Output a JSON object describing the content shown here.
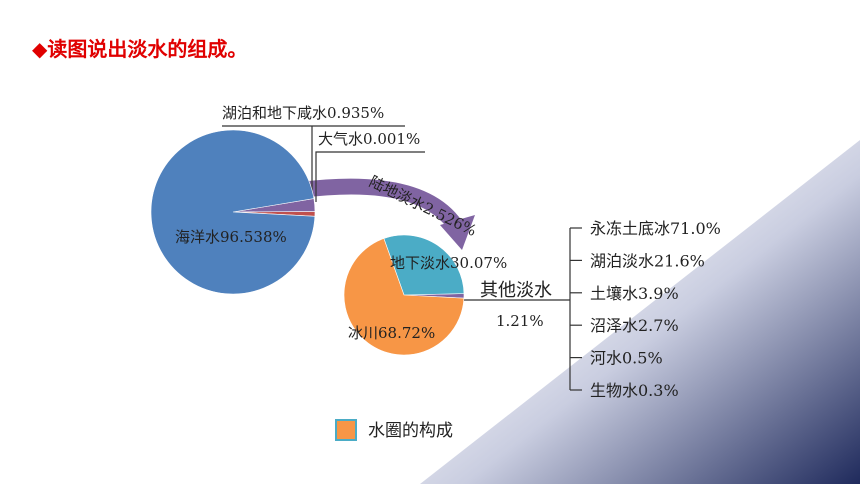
{
  "title": "读图说出淡水的组成。",
  "chart_data": [
    {
      "type": "pie",
      "categories": [
        "湖泊和地下咸水",
        "大气水",
        "陆地淡水",
        "海洋水"
      ],
      "values": [
        0.935,
        0.001,
        2.526,
        96.538
      ],
      "value_labels": [
        "0.935%",
        "0.001%",
        "2.526%",
        "96.538%"
      ],
      "colors": [
        "#c0504d",
        "#9bbb59",
        "#8064a2",
        "#4f81bd"
      ]
    },
    {
      "type": "pie",
      "categories": [
        "其他淡水",
        "地下淡水",
        "冰川"
      ],
      "values": [
        1.21,
        30.07,
        68.72
      ],
      "value_labels": [
        "1.21%",
        "30.07%",
        "68.72%"
      ],
      "colors": [
        "#8064a2",
        "#4bacc6",
        "#f79646"
      ]
    }
  ],
  "other_freshwater": [
    "永冻土底冰71.0%",
    "湖泊淡水21.6%",
    "土壤水3.9%",
    "沼泽水2.7%",
    "河水0.5%",
    "生物水0.3%"
  ],
  "legend": "水圈的构成"
}
